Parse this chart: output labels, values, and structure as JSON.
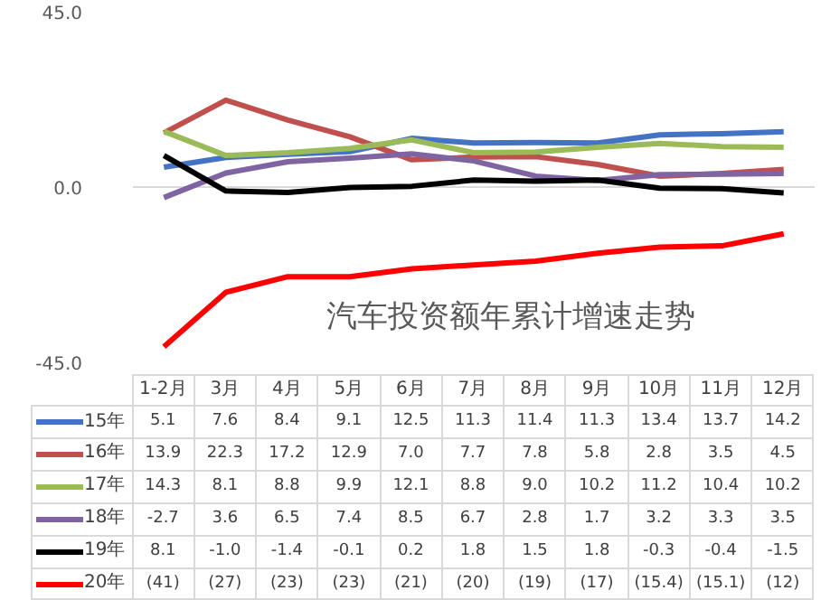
{
  "chart_data": {
    "type": "line",
    "title": "汽车投资额年累计增速走势",
    "categories": [
      "1-2月",
      "3月",
      "4月",
      "5月",
      "6月",
      "7月",
      "8月",
      "9月",
      "10月",
      "11月",
      "12月"
    ],
    "ylim": [
      -45,
      45
    ],
    "yticks": [
      {
        "value": -45,
        "label": "-45.0"
      },
      {
        "value": 0,
        "label": "0.0"
      },
      {
        "value": 45,
        "label": "45.0"
      }
    ],
    "grid": "y",
    "legend": "bottom left",
    "series": [
      {
        "name": "15年",
        "color": "#4472c4",
        "values": [
          5.1,
          7.6,
          8.4,
          9.1,
          12.5,
          11.3,
          11.4,
          11.3,
          13.4,
          13.7,
          14.2
        ],
        "value_labels": [
          "5.1",
          "7.6",
          "8.4",
          "9.1",
          "12.5",
          "11.3",
          "11.4",
          "11.3",
          "13.4",
          "13.7",
          "14.2"
        ]
      },
      {
        "name": "16年",
        "color": "#c0504d",
        "values": [
          13.9,
          22.3,
          17.2,
          12.9,
          7.0,
          7.7,
          7.8,
          5.8,
          2.8,
          3.5,
          4.5
        ],
        "value_labels": [
          "13.9",
          "22.3",
          "17.2",
          "12.9",
          "7.0",
          "7.7",
          "7.8",
          "5.8",
          "2.8",
          "3.5",
          "4.5"
        ]
      },
      {
        "name": "17年",
        "color": "#9bbb59",
        "values": [
          14.3,
          8.1,
          8.8,
          9.9,
          12.1,
          8.8,
          9.0,
          10.2,
          11.2,
          10.4,
          10.2
        ],
        "value_labels": [
          "14.3",
          "8.1",
          "8.8",
          "9.9",
          "12.1",
          "8.8",
          "9.0",
          "10.2",
          "11.2",
          "10.4",
          "10.2"
        ]
      },
      {
        "name": "18年",
        "color": "#8064a2",
        "values": [
          -2.7,
          3.6,
          6.5,
          7.4,
          8.5,
          6.7,
          2.8,
          1.7,
          3.2,
          3.3,
          3.5
        ],
        "value_labels": [
          "-2.7",
          "3.6",
          "6.5",
          "7.4",
          "8.5",
          "6.7",
          "2.8",
          "1.7",
          "3.2",
          "3.3",
          "3.5"
        ]
      },
      {
        "name": "19年",
        "color": "#000000",
        "values": [
          8.1,
          -1.0,
          -1.4,
          -0.1,
          0.2,
          1.8,
          1.5,
          1.8,
          -0.3,
          -0.4,
          -1.5
        ],
        "value_labels": [
          "8.1",
          "-1.0",
          "-1.4",
          "-0.1",
          "0.2",
          "1.8",
          "1.5",
          "1.8",
          "-0.3",
          "-0.4",
          "-1.5"
        ]
      },
      {
        "name": "20年",
        "color": "#ff0000",
        "values": [
          -41,
          -27,
          -23,
          -23,
          -21,
          -20,
          -19,
          -17,
          -15.4,
          -15.1,
          -12
        ],
        "value_labels": [
          "(41)",
          "(27)",
          "(23)",
          "(23)",
          "(21)",
          "(20)",
          "(19)",
          "(17)",
          "(15.4)",
          "(15.1)",
          "(12)"
        ]
      }
    ]
  }
}
